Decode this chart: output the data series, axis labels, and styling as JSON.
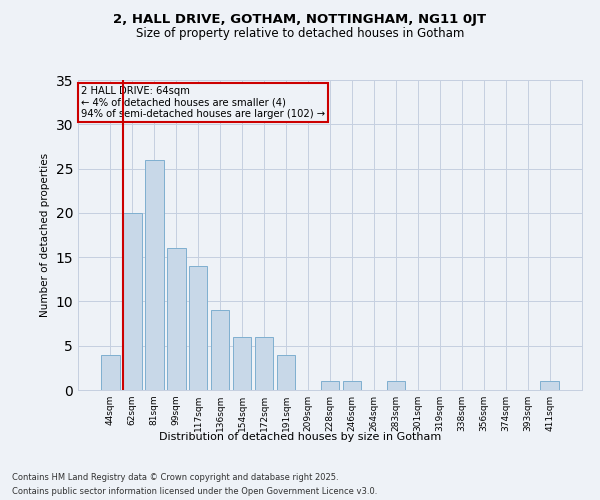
{
  "title1": "2, HALL DRIVE, GOTHAM, NOTTINGHAM, NG11 0JT",
  "title2": "Size of property relative to detached houses in Gotham",
  "xlabel": "Distribution of detached houses by size in Gotham",
  "ylabel": "Number of detached properties",
  "categories": [
    "44sqm",
    "62sqm",
    "81sqm",
    "99sqm",
    "117sqm",
    "136sqm",
    "154sqm",
    "172sqm",
    "191sqm",
    "209sqm",
    "228sqm",
    "246sqm",
    "264sqm",
    "283sqm",
    "301sqm",
    "319sqm",
    "338sqm",
    "356sqm",
    "374sqm",
    "393sqm",
    "411sqm"
  ],
  "values": [
    4,
    20,
    26,
    16,
    14,
    9,
    6,
    6,
    4,
    0,
    1,
    1,
    0,
    1,
    0,
    0,
    0,
    0,
    0,
    0,
    1
  ],
  "bar_color": "#c8d8e8",
  "bar_edge_color": "#7fafd0",
  "highlight_line_color": "#cc0000",
  "annotation_title": "2 HALL DRIVE: 64sqm",
  "annotation_line1": "← 4% of detached houses are smaller (4)",
  "annotation_line2": "94% of semi-detached houses are larger (102) →",
  "annotation_box_color": "#cc0000",
  "ylim": [
    0,
    35
  ],
  "yticks": [
    0,
    5,
    10,
    15,
    20,
    25,
    30,
    35
  ],
  "footer1": "Contains HM Land Registry data © Crown copyright and database right 2025.",
  "footer2": "Contains public sector information licensed under the Open Government Licence v3.0.",
  "bg_color": "#eef2f7",
  "grid_color": "#c5cfe0"
}
